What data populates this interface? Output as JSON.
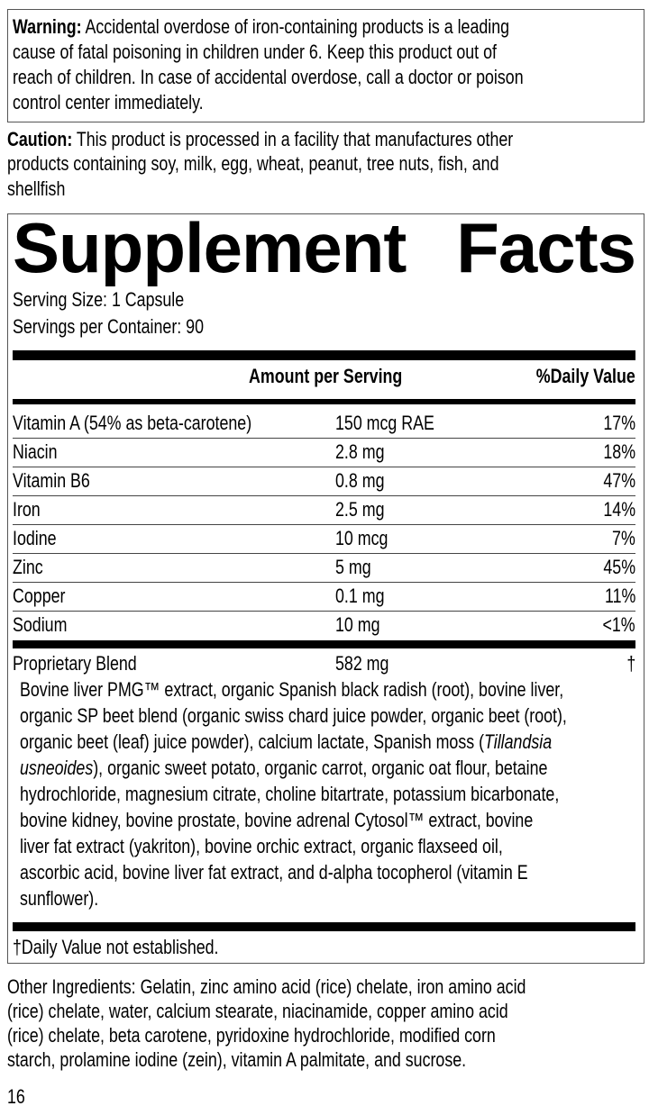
{
  "warning": {
    "label": "Warning:",
    "lines": [
      " Accidental overdose of iron-containing products is a leading",
      "cause of fatal poisoning in children under 6. Keep this product out of",
      "reach of children. In case of accidental overdose, call a doctor or poison",
      "control center immediately."
    ]
  },
  "caution": {
    "label": "Caution:",
    "lines": [
      " This product is processed in a facility that manufactures other",
      "products containing soy, milk, egg, wheat, peanut, tree nuts, fish, and",
      "shellfish"
    ]
  },
  "facts": {
    "title_word1": "Supplement",
    "title_word2": "Facts",
    "serving_size": "Serving Size: 1 Capsule",
    "servings_per_container": "Servings per Container: 90",
    "header_amount": "Amount per Serving",
    "header_dv": "%Daily Value",
    "rows": [
      {
        "name": "Vitamin A (54% as beta-carotene)",
        "amount": "150 mcg RAE",
        "dv": "17%"
      },
      {
        "name": "Niacin",
        "amount": "2.8 mg",
        "dv": "18%"
      },
      {
        "name": "Vitamin B6",
        "amount": "0.8 mg",
        "dv": "47%"
      },
      {
        "name": "Iron",
        "amount": "2.5 mg",
        "dv": "14%"
      },
      {
        "name": "Iodine",
        "amount": "10 mcg",
        "dv": "7%"
      },
      {
        "name": "Zinc",
        "amount": "5 mg",
        "dv": "45%"
      },
      {
        "name": "Copper",
        "amount": "0.1 mg",
        "dv": "11%"
      },
      {
        "name": "Sodium",
        "amount": "10 mg",
        "dv": "<1%"
      }
    ],
    "blend": {
      "name": "Proprietary Blend",
      "amount": "582 mg",
      "dv": "†"
    },
    "blend_lines": [
      "Bovine liver PMG™ extract, organic Spanish black radish (root), bovine liver,",
      "organic SP beet blend (organic swiss chard juice powder, organic beet (root),",
      "organic beet (leaf) juice powder), calcium lactate, Spanish moss (",
      "Tillandsia",
      "usneoides",
      "), organic sweet potato, organic carrot, organic oat flour, betaine",
      "hydrochloride, magnesium citrate, choline bitartrate, potassium bicarbonate,",
      "bovine kidney, bovine prostate, bovine adrenal Cytosol™ extract, bovine",
      "liver fat extract (yakriton), bovine orchic extract, organic flaxseed oil,",
      "ascorbic acid, bovine liver fat extract, and d-alpha tocopherol (vitamin E",
      "sunflower)."
    ],
    "footnote": "†Daily Value not established."
  },
  "other_ingredients": [
    "Other Ingredients: Gelatin, zinc amino acid (rice) chelate, iron amino acid",
    "(rice) chelate, water, calcium stearate, niacinamide, copper amino acid",
    "(rice) chelate, beta carotene, pyridoxine hydrochloride, modified corn",
    "starch, prolamine iodine (zein), vitamin A palmitate, and sucrose."
  ],
  "page_number": "16"
}
